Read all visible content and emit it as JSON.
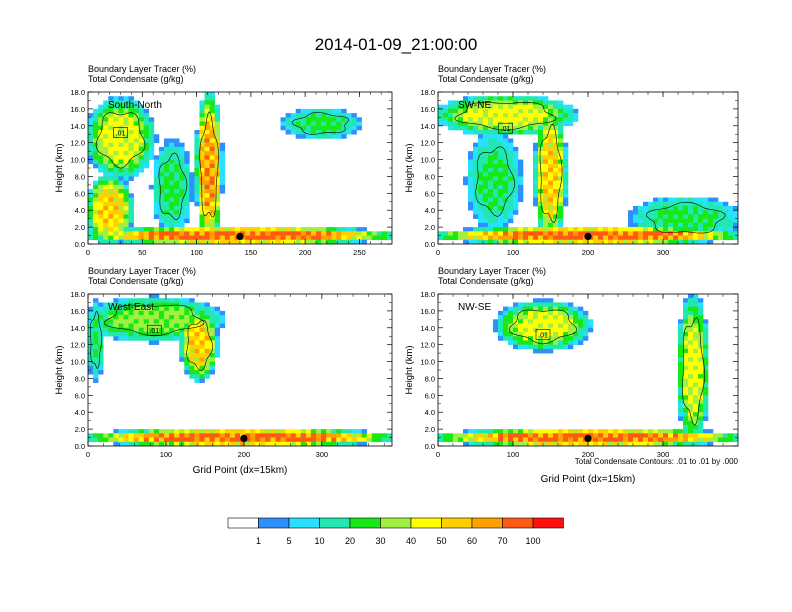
{
  "figure": {
    "title": "2014-01-09_21:00:00",
    "footnote": "Total Condensate Contours: .01 to .01 by .000"
  },
  "colorbar": {
    "labels": [
      "1",
      "5",
      "10",
      "20",
      "30",
      "40",
      "50",
      "60",
      "70",
      "100"
    ],
    "colors": [
      "#ffffff",
      "#2e8fff",
      "#28e0ff",
      "#20e8b0",
      "#18e818",
      "#a0f040",
      "#ffff00",
      "#ffd000",
      "#ffa000",
      "#ff5a14",
      "#ff1010"
    ]
  },
  "chart_data": [
    {
      "type": "heatmap",
      "panel": "South-North",
      "title": "Boundary Layer Tracer    (%)",
      "subtitle": "Total Condensate    (g/kg)",
      "ylabel": "Height (km)",
      "xlabel": "",
      "xlim": [
        0,
        280
      ],
      "ylim": [
        0,
        18
      ],
      "xticks": [
        0,
        50,
        100,
        150,
        200,
        250
      ],
      "yticks": [
        0,
        2,
        4,
        6,
        8,
        10,
        12,
        14,
        16,
        18
      ],
      "contour_label": ".01",
      "marker_x": 140,
      "blobs": [
        {
          "x": [
            0,
            60
          ],
          "y": [
            8,
            17
          ],
          "level": 40
        },
        {
          "x": [
            0,
            40
          ],
          "y": [
            0,
            8
          ],
          "level": 50
        },
        {
          "x": [
            60,
            95
          ],
          "y": [
            1.5,
            12
          ],
          "level": 20
        },
        {
          "x": [
            100,
            123
          ],
          "y": [
            0.5,
            17.5
          ],
          "level": 60
        },
        {
          "x": [
            180,
            250
          ],
          "y": [
            12.5,
            16
          ],
          "level": 20
        },
        {
          "x": [
            0,
            280
          ],
          "y": [
            0,
            2
          ],
          "level": 70
        }
      ]
    },
    {
      "type": "heatmap",
      "panel": "SW-NE",
      "title": "Boundary Layer Tracer    (%)",
      "subtitle": "Total Condensate    (g/kg)",
      "ylabel": "Height (km)",
      "xlabel": "",
      "xlim": [
        0,
        400
      ],
      "ylim": [
        0,
        18
      ],
      "xticks": [
        0,
        100,
        200,
        300
      ],
      "yticks": [
        0,
        2,
        4,
        6,
        8,
        10,
        12,
        14,
        16,
        18
      ],
      "contour_label": ".01",
      "marker_x": 200,
      "blobs": [
        {
          "x": [
            0,
            180
          ],
          "y": [
            13,
            17.5
          ],
          "level": 40
        },
        {
          "x": [
            40,
            110
          ],
          "y": [
            2,
            13
          ],
          "level": 20
        },
        {
          "x": [
            130,
            170
          ],
          "y": [
            0.5,
            16
          ],
          "level": 50
        },
        {
          "x": [
            260,
            400
          ],
          "y": [
            0.5,
            5.5
          ],
          "level": 20
        },
        {
          "x": [
            0,
            400
          ],
          "y": [
            0,
            2
          ],
          "level": 70
        }
      ]
    },
    {
      "type": "heatmap",
      "panel": "West-East",
      "title": "Boundary Layer Tracer    (%)",
      "subtitle": "Total Condensate    (g/kg)",
      "ylabel": "Height (km)",
      "xlabel": "Grid Point (dx=15km)",
      "xlim": [
        0,
        390
      ],
      "ylim": [
        0,
        18
      ],
      "xticks": [
        0,
        100,
        200,
        300
      ],
      "yticks": [
        0,
        2,
        4,
        6,
        8,
        10,
        12,
        14,
        16,
        18
      ],
      "contour_label": ".01",
      "marker_x": 200,
      "blobs": [
        {
          "x": [
            0,
            170
          ],
          "y": [
            12.5,
            17.5
          ],
          "level": 30
        },
        {
          "x": [
            120,
            165
          ],
          "y": [
            8,
            16
          ],
          "level": 50
        },
        {
          "x": [
            0,
            20
          ],
          "y": [
            8,
            17
          ],
          "level": 20
        },
        {
          "x": [
            0,
            390
          ],
          "y": [
            0,
            2
          ],
          "level": 70
        }
      ]
    },
    {
      "type": "heatmap",
      "panel": "NW-SE",
      "title": "Boundary Layer Tracer    (%)",
      "subtitle": "Total Condensate    (g/kg)",
      "ylabel": "Height (km)",
      "xlabel": "Grid Point (dx=15km)",
      "xlim": [
        0,
        400
      ],
      "ylim": [
        0,
        18
      ],
      "xticks": [
        0,
        100,
        200,
        300
      ],
      "yticks": [
        0,
        2,
        4,
        6,
        8,
        10,
        12,
        14,
        16,
        18
      ],
      "contour_label": ".01",
      "marker_x": 200,
      "blobs": [
        {
          "x": [
            80,
            200
          ],
          "y": [
            11.5,
            17
          ],
          "level": 40
        },
        {
          "x": [
            320,
            360
          ],
          "y": [
            0.5,
            17.5
          ],
          "level": 40
        },
        {
          "x": [
            0,
            400
          ],
          "y": [
            0,
            2
          ],
          "level": 70
        }
      ]
    }
  ]
}
